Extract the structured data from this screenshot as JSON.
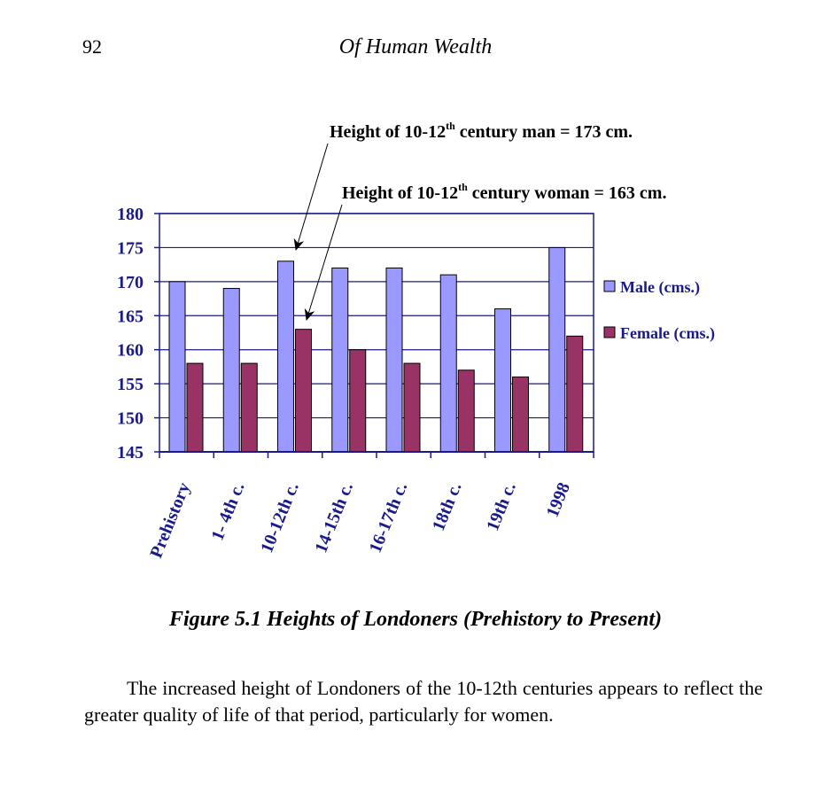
{
  "page": {
    "number": "92",
    "running_head": "Of Human Wealth"
  },
  "chart_data": {
    "type": "bar",
    "categories": [
      "Prehistory",
      "1- 4th c.",
      "10-12th c.",
      "14-15th c.",
      "16-17th c.",
      "18th c.",
      "19th c.",
      "1998"
    ],
    "series": [
      {
        "name": "Male (cms.)",
        "values": [
          170,
          169,
          173,
          172,
          172,
          171,
          166,
          175
        ],
        "color": "#9999ff"
      },
      {
        "name": "Female (cms.)",
        "values": [
          158,
          158,
          163,
          160,
          158,
          157,
          156,
          162
        ],
        "color": "#993366"
      }
    ],
    "ylim": [
      145,
      180
    ],
    "yticks": [
      145,
      150,
      155,
      160,
      165,
      170,
      175,
      180
    ],
    "grid": true,
    "legend": "right",
    "annotations": [
      {
        "text_main": "Height of 10-12",
        "text_sup": "th",
        "text_rest": " century man = 173 cm."
      },
      {
        "text_main": "Height of 10-12",
        "text_sup": "th",
        "text_rest": " century woman = 163 cm."
      }
    ]
  },
  "figure": {
    "caption": "Figure 5.1  Heights of Londoners (Prehistory to Present)"
  },
  "body": {
    "paragraph": "The increased height of Londoners of the 10-12th centuries appears to reflect the greater quality of life of that period, particularly for women."
  }
}
